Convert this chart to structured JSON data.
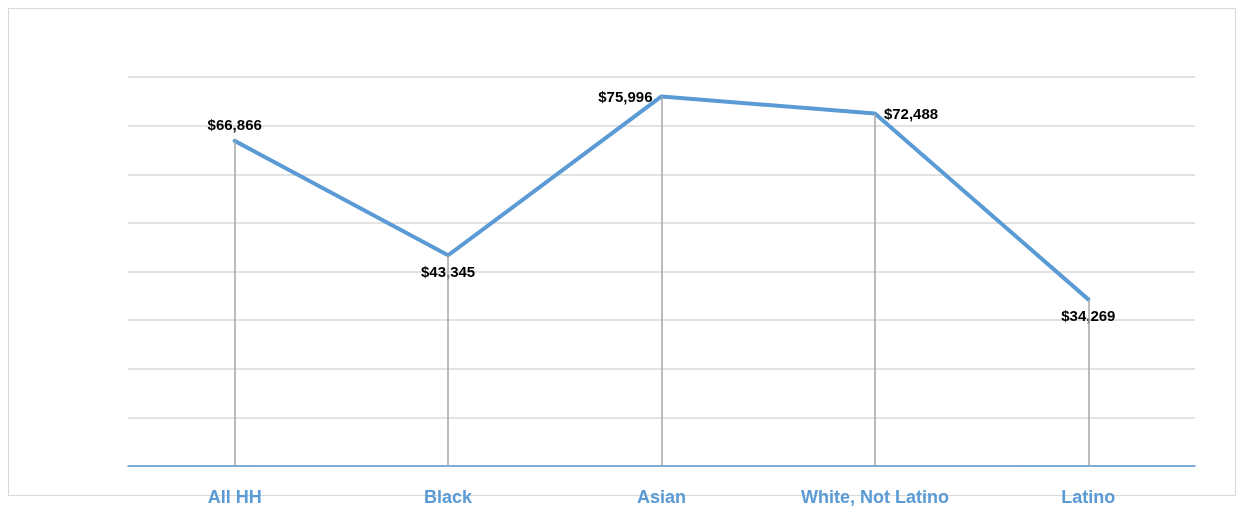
{
  "chart_data": {
    "type": "line",
    "categories": [
      "All HH",
      "Black",
      "Asian",
      "White, Not Latino",
      "Latino"
    ],
    "series": [
      {
        "color": "#5b9bd5",
        "values": [
          66866,
          43345,
          75996,
          72488,
          34269
        ],
        "value_labels": [
          "$66,866",
          "$43,345",
          "$75,996",
          "$72,488",
          "$34,269"
        ]
      }
    ],
    "tick_labels": "x",
    "grid": true,
    "marker": "none",
    "line_style": "solid"
  }
}
